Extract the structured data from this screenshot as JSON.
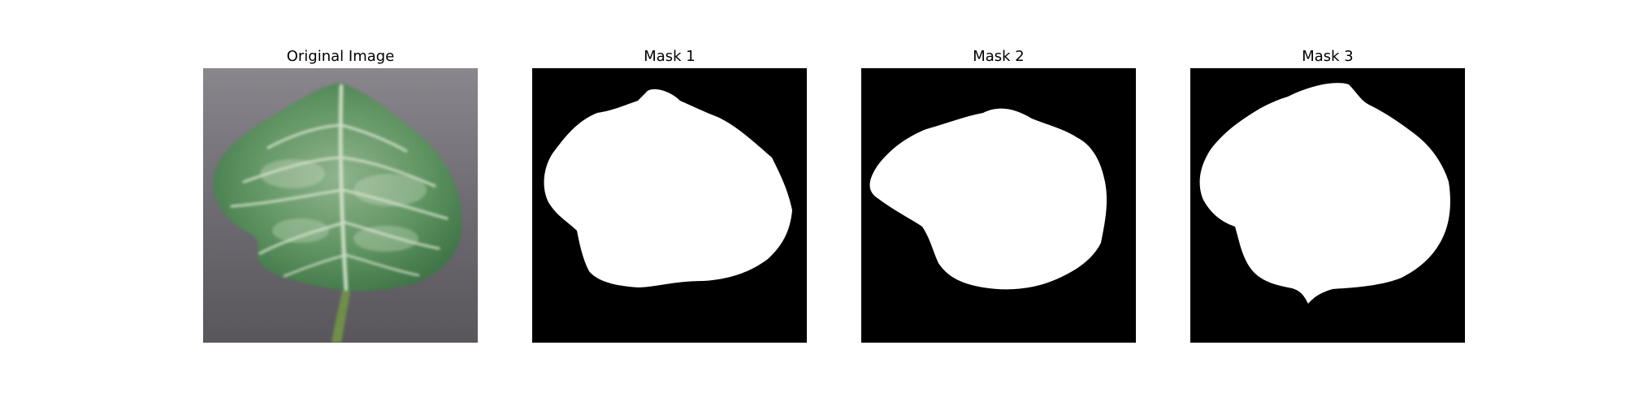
{
  "figure": {
    "panels": [
      {
        "title": "Original Image",
        "content": "leaf photo"
      },
      {
        "title": "Mask 1",
        "content": "binary mask"
      },
      {
        "title": "Mask 2",
        "content": "binary mask"
      },
      {
        "title": "Mask 3",
        "content": "binary mask"
      }
    ],
    "colors": {
      "background": "#ffffff",
      "mask_background": "#000000",
      "mask_foreground": "#ffffff",
      "leaf_green": "#4f8a55",
      "surface_gray": "#6f6d74"
    }
  }
}
